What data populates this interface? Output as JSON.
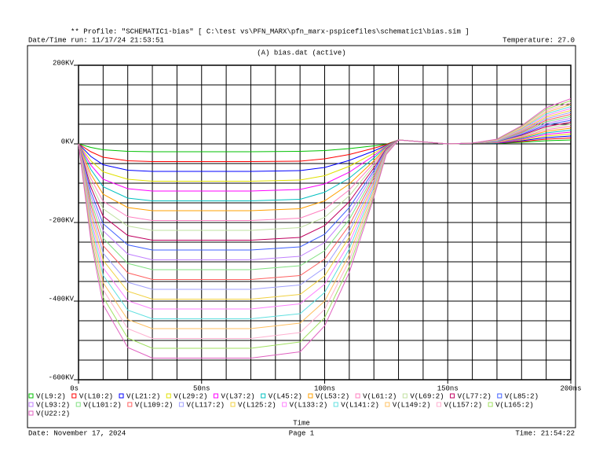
{
  "chart_data": {
    "type": "line",
    "header": "** Profile: \"SCHEMATIC1-bias\"  [ C:\\test vs\\PFN_MARX\\pfn_marx-pspicefiles\\schematic1\\bias.sim ]",
    "run_time": "Date/Time run: 11/17/24 21:53:51",
    "temperature": "Temperature: 27.0",
    "title": "(A) bias.dat (active)",
    "xlabel": "Time",
    "footer_date": "Date: November 17, 2024",
    "footer_page": "Page 1",
    "footer_time": "Time: 21:54:22",
    "xlim": [
      0,
      200
    ],
    "ylim": [
      -600,
      200
    ],
    "xticks": [
      {
        "value": 0,
        "label": "0s"
      },
      {
        "value": 50,
        "label": "50ns"
      },
      {
        "value": 100,
        "label": "100ns"
      },
      {
        "value": 150,
        "label": "150ns"
      },
      {
        "value": 200,
        "label": "200ns"
      }
    ],
    "yticks": [
      {
        "value": -600,
        "label": "-600KV"
      },
      {
        "value": -400,
        "label": "-400KV"
      },
      {
        "value": -200,
        "label": "-200KV"
      },
      {
        "value": 0,
        "label": "0KV"
      },
      {
        "value": 200,
        "label": "200KV"
      }
    ],
    "xgrid": [
      0,
      10,
      20,
      30,
      40,
      50,
      60,
      70,
      80,
      90,
      100,
      110,
      120,
      130,
      140,
      150,
      160,
      170,
      180,
      190,
      200
    ],
    "ygrid": [
      -600,
      -550,
      -500,
      -450,
      -400,
      -350,
      -300,
      -250,
      -200,
      -150,
      -100,
      -50,
      0,
      50,
      100,
      150,
      200
    ],
    "grid": true,
    "x": [
      0,
      5,
      10,
      20,
      30,
      50,
      70,
      90,
      100,
      110,
      120,
      125,
      130,
      140,
      150,
      160,
      170,
      180,
      190,
      200
    ],
    "series": [
      {
        "name": "V(L9:2)",
        "color": "#00c000",
        "values": [
          0,
          -9,
          -15,
          -19,
          -20,
          -20,
          -20,
          -19,
          -17,
          -12,
          -5,
          -1,
          10,
          5,
          0,
          2,
          1,
          4,
          8,
          10
        ]
      },
      {
        "name": "V(L10:2)",
        "color": "#ff0000",
        "values": [
          0,
          -20,
          -34,
          -43,
          -45,
          -45,
          -45,
          -44,
          -38,
          -27,
          -11,
          -2,
          10,
          5,
          0,
          2,
          2,
          6,
          12,
          15
        ]
      },
      {
        "name": "V(L21:2)",
        "color": "#0000ff",
        "values": [
          0,
          -32,
          -53,
          -67,
          -70,
          -70,
          -70,
          -68,
          -60,
          -42,
          -18,
          -4,
          10,
          5,
          0,
          2,
          2,
          8,
          16,
          20
        ]
      },
      {
        "name": "V(L29:2)",
        "color": "#e0e000",
        "values": [
          0,
          -43,
          -71,
          -90,
          -95,
          -95,
          -95,
          -92,
          -81,
          -57,
          -24,
          -5,
          10,
          5,
          0,
          2,
          3,
          10,
          20,
          25
        ]
      },
      {
        "name": "V(L37:2)",
        "color": "#ff00ff",
        "values": [
          0,
          -54,
          -90,
          -114,
          -120,
          -120,
          -120,
          -116,
          -102,
          -72,
          -30,
          -6,
          10,
          5,
          0,
          2,
          3,
          12,
          24,
          30
        ]
      },
      {
        "name": "V(L45:2)",
        "color": "#00c0c0",
        "values": [
          0,
          -65,
          -109,
          -138,
          -145,
          -145,
          -145,
          -141,
          -123,
          -87,
          -36,
          -7,
          10,
          5,
          0,
          2,
          4,
          14,
          28,
          35
        ]
      },
      {
        "name": "V(L53:2)",
        "color": "#ffa000",
        "values": [
          0,
          -77,
          -128,
          -162,
          -170,
          -170,
          -170,
          -165,
          -145,
          -102,
          -43,
          -9,
          10,
          5,
          0,
          2,
          4,
          16,
          32,
          40
        ]
      },
      {
        "name": "V(L61:2)",
        "color": "#ff80c0",
        "values": [
          0,
          -88,
          -146,
          -185,
          -195,
          -195,
          -195,
          -189,
          -166,
          -117,
          -49,
          -10,
          10,
          5,
          0,
          2,
          5,
          18,
          36,
          45
        ]
      },
      {
        "name": "V(L69:2)",
        "color": "#c0e0a0",
        "values": [
          0,
          -99,
          -165,
          -209,
          -220,
          -220,
          -220,
          -213,
          -187,
          -132,
          -55,
          -11,
          10,
          5,
          0,
          2,
          5,
          20,
          40,
          50
        ]
      },
      {
        "name": "V(L77:2)",
        "color": "#c00060",
        "values": [
          0,
          -110,
          -184,
          -233,
          -245,
          -245,
          -245,
          -238,
          -208,
          -147,
          -61,
          -12,
          10,
          5,
          0,
          2,
          6,
          22,
          44,
          55
        ]
      },
      {
        "name": "V(L85:2)",
        "color": "#4060ff",
        "values": [
          0,
          -122,
          -203,
          -257,
          -270,
          -270,
          -270,
          -262,
          -230,
          -162,
          -68,
          -14,
          10,
          5,
          0,
          2,
          6,
          24,
          48,
          60
        ]
      },
      {
        "name": "V(L93:2)",
        "color": "#c080ff",
        "values": [
          0,
          -133,
          -221,
          -280,
          -295,
          -295,
          -295,
          -286,
          -251,
          -177,
          -74,
          -15,
          10,
          5,
          0,
          2,
          7,
          26,
          52,
          65
        ]
      },
      {
        "name": "V(L101:2)",
        "color": "#80e080",
        "values": [
          0,
          -144,
          -240,
          -304,
          -320,
          -320,
          -320,
          -310,
          -272,
          -192,
          -80,
          -16,
          10,
          5,
          0,
          2,
          7,
          28,
          56,
          70
        ]
      },
      {
        "name": "V(L109:2)",
        "color": "#ff6060",
        "values": [
          0,
          -155,
          -259,
          -328,
          -345,
          -345,
          -345,
          -335,
          -293,
          -207,
          -86,
          -17,
          10,
          5,
          0,
          2,
          8,
          30,
          60,
          75
        ]
      },
      {
        "name": "V(L117:2)",
        "color": "#a0a0ff",
        "values": [
          0,
          -167,
          -278,
          -352,
          -370,
          -370,
          -370,
          -359,
          -315,
          -222,
          -93,
          -19,
          10,
          5,
          0,
          2,
          8,
          32,
          64,
          80
        ]
      },
      {
        "name": "V(L125:2)",
        "color": "#f0d040",
        "values": [
          0,
          -178,
          -296,
          -375,
          -395,
          -395,
          -395,
          -383,
          -336,
          -237,
          -99,
          -20,
          10,
          5,
          0,
          2,
          9,
          34,
          68,
          85
        ]
      },
      {
        "name": "V(L133:2)",
        "color": "#ff80ff",
        "values": [
          0,
          -189,
          -315,
          -399,
          -420,
          -420,
          -420,
          -407,
          -357,
          -252,
          -105,
          -21,
          10,
          5,
          0,
          2,
          9,
          36,
          72,
          90
        ]
      },
      {
        "name": "V(L141:2)",
        "color": "#60e0e0",
        "values": [
          0,
          -200,
          -334,
          -423,
          -445,
          -445,
          -445,
          -432,
          -378,
          -267,
          -111,
          -22,
          10,
          5,
          0,
          2,
          10,
          38,
          76,
          95
        ]
      },
      {
        "name": "V(L149:2)",
        "color": "#ffc060",
        "values": [
          0,
          -212,
          -353,
          -447,
          -470,
          -470,
          -470,
          -456,
          -400,
          -282,
          -118,
          -24,
          10,
          5,
          0,
          2,
          10,
          40,
          80,
          100
        ]
      },
      {
        "name": "V(L157:2)",
        "color": "#ffb0d0",
        "values": [
          0,
          -223,
          -371,
          -470,
          -495,
          -495,
          -495,
          -480,
          -421,
          -297,
          -124,
          -25,
          10,
          5,
          0,
          2,
          11,
          42,
          84,
          105
        ]
      },
      {
        "name": "V(L165:2)",
        "color": "#a0e060",
        "values": [
          0,
          -234,
          -390,
          -494,
          -520,
          -520,
          -520,
          -504,
          -442,
          -312,
          -130,
          -26,
          10,
          5,
          0,
          2,
          11,
          44,
          88,
          110
        ]
      },
      {
        "name": "V(U22:2)",
        "color": "#e060c0",
        "values": [
          0,
          -245,
          -409,
          -518,
          -545,
          -545,
          -545,
          -529,
          -463,
          -327,
          -136,
          -27,
          10,
          5,
          0,
          2,
          12,
          46,
          92,
          115
        ]
      }
    ]
  }
}
